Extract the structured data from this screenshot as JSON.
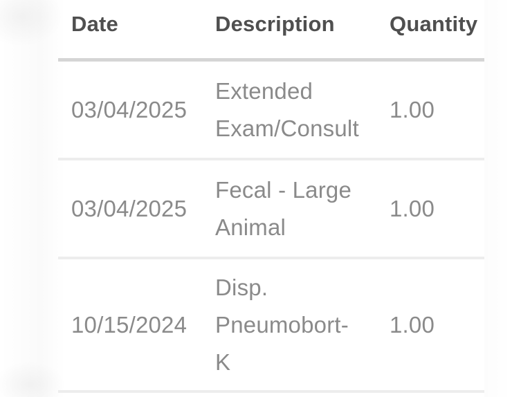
{
  "table": {
    "columns": [
      {
        "key": "date",
        "label": "Date"
      },
      {
        "key": "description",
        "label": "Description"
      },
      {
        "key": "quantity",
        "label": "Quantity"
      }
    ],
    "rows": [
      {
        "date": "03/04/2025",
        "description": "Extended Exam/Consult",
        "description_lines": [
          "Extended",
          "Exam/Consult"
        ],
        "quantity": "1.00"
      },
      {
        "date": "03/04/2025",
        "description": "Fecal - Large Animal",
        "description_lines": [
          "Fecal - Large",
          "Animal"
        ],
        "quantity": "1.00"
      },
      {
        "date": "10/15/2024",
        "description": "Disp. Pneumobort-K",
        "description_lines": [
          "Disp.",
          "Pneumobort-",
          "K"
        ],
        "quantity": "1.00"
      }
    ]
  },
  "colors": {
    "header_text": "#4f4f4f",
    "body_text": "#8a8a8a",
    "rule_strong": "#d5d5d5",
    "rule_light": "#ededed",
    "background": "#ffffff"
  }
}
